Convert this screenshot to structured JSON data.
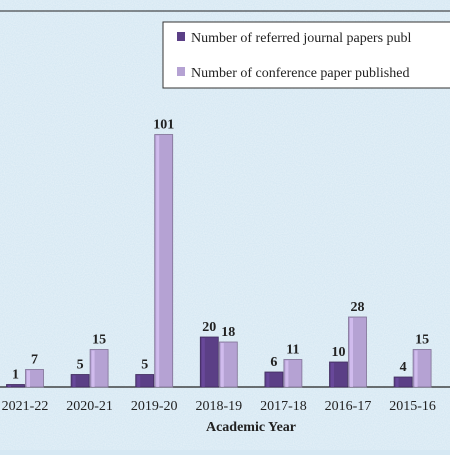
{
  "chart_data": {
    "type": "bar",
    "title": "",
    "xlabel": "Academic Year",
    "ylabel": "",
    "categories": [
      "2021-22",
      "2020-21",
      "2019-20",
      "2018-19",
      "2017-18",
      "2016-17",
      "2015-16"
    ],
    "series": [
      {
        "name": "Number of referred journal papers publ",
        "values": [
          1,
          5,
          5,
          20,
          6,
          10,
          4
        ],
        "color": "#5b3f86"
      },
      {
        "name": "Number of conference paper published",
        "values": [
          7,
          15,
          101,
          18,
          11,
          28,
          15
        ],
        "color": "#b5a2d3"
      }
    ],
    "ylim": [
      0,
      110
    ],
    "grid": false,
    "legend_position": "top-right",
    "background_color": "#d6e8f3"
  }
}
